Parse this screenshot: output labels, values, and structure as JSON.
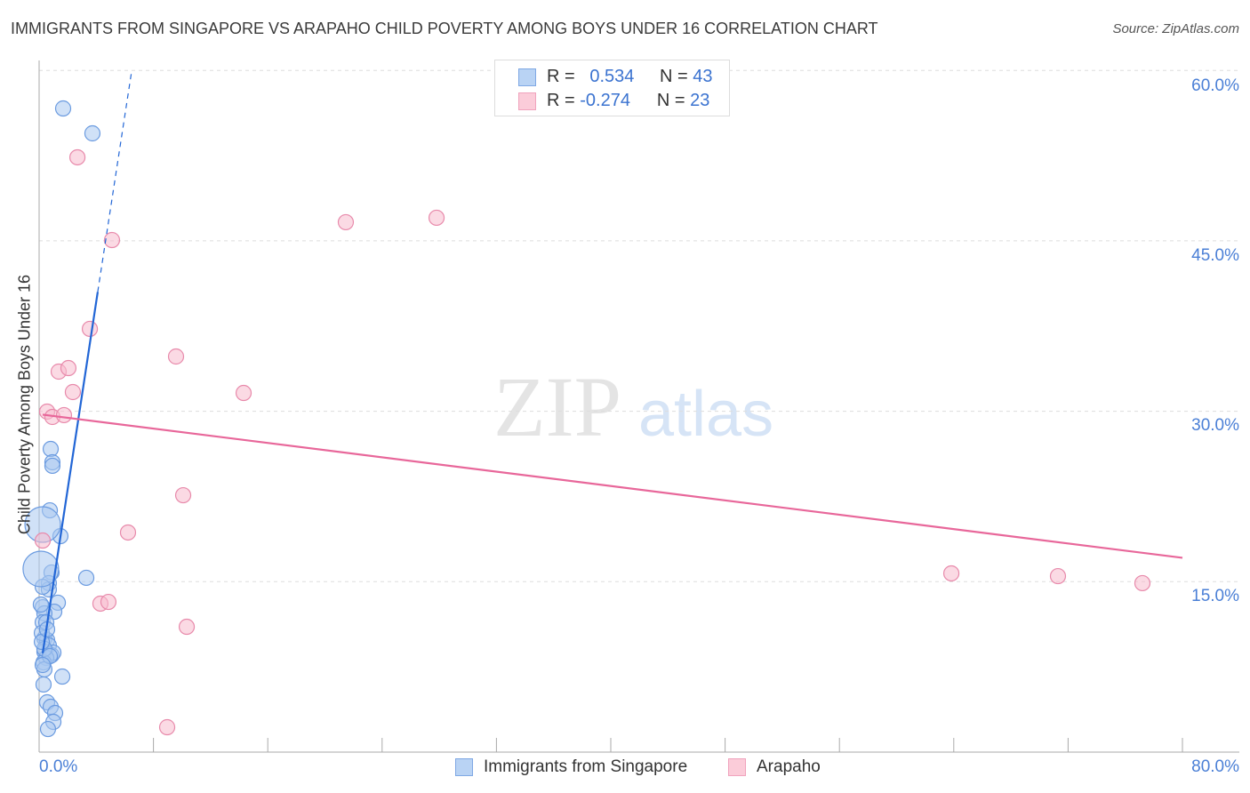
{
  "chart_data": {
    "type": "scatter",
    "title": "IMMIGRANTS FROM SINGAPORE VS ARAPAHO CHILD POVERTY AMONG BOYS UNDER 16 CORRELATION CHART",
    "source": "Source: ZipAtlas.com",
    "ylabel": "Child Poverty Among Boys Under 16",
    "xlim": [
      0,
      80
    ],
    "ylim": [
      0,
      62
    ],
    "x_tick_labels": [
      "0.0%",
      "80.0%"
    ],
    "y_ticks": [
      15,
      30,
      45,
      60
    ],
    "y_tick_labels": [
      "15.0%",
      "30.0%",
      "45.0%",
      "60.0%"
    ],
    "grid": true,
    "legend": [
      {
        "name": "Immigrants from Singapore",
        "r_label": "R =",
        "r": "0.534",
        "n_label": "N =",
        "n": "43",
        "color": "#a9c8f0",
        "stroke": "#6b9be0"
      },
      {
        "name": "Arapaho",
        "r_label": "R =",
        "r": "-0.274",
        "n_label": "N =",
        "n": "23",
        "color": "#f8bccd",
        "stroke": "#e88aab"
      }
    ],
    "series": [
      {
        "name": "Immigrants from Singapore",
        "trend": {
          "x0": 0.25,
          "y0": 8.7,
          "x1": 4.1,
          "y1": 40.5,
          "dash_to_x": 6.47,
          "dash_to_y": 59.9,
          "color": "#2266d6"
        },
        "points": [
          [
            1.68,
            56.65
          ],
          [
            3.73,
            54.46
          ],
          [
            0.81,
            26.68
          ],
          [
            0.93,
            25.51
          ],
          [
            0.93,
            25.2
          ],
          [
            0.75,
            21.28
          ],
          [
            1.49,
            19.01
          ],
          [
            0.25,
            20.03,
            "big"
          ],
          [
            0.87,
            15.81
          ],
          [
            3.3,
            15.34
          ],
          [
            0.68,
            14.87
          ],
          [
            0.68,
            14.32
          ],
          [
            1.31,
            13.15
          ],
          [
            0.25,
            12.75
          ],
          [
            1.06,
            12.36
          ],
          [
            0.37,
            12.21
          ],
          [
            0.25,
            11.42
          ],
          [
            0.37,
            10.02
          ],
          [
            0.56,
            9.86
          ],
          [
            0.19,
            10.49
          ],
          [
            0.68,
            9.39
          ],
          [
            0.37,
            8.84
          ],
          [
            0.87,
            8.53
          ],
          [
            1.0,
            8.76
          ],
          [
            0.5,
            8.29
          ],
          [
            0.31,
            7.9
          ],
          [
            1.62,
            6.65
          ],
          [
            0.37,
            7.28
          ],
          [
            0.31,
            5.95
          ],
          [
            0.56,
            4.38
          ],
          [
            0.81,
            3.99
          ],
          [
            1.12,
            3.44
          ],
          [
            1.0,
            2.66
          ],
          [
            0.62,
            2.03
          ],
          [
            0.25,
            14.55
          ],
          [
            0.12,
            16.12,
            "big"
          ],
          [
            0.37,
            9.08
          ],
          [
            0.75,
            8.45
          ],
          [
            0.5,
            11.42
          ],
          [
            0.12,
            12.99
          ],
          [
            0.19,
            9.7
          ],
          [
            0.56,
            10.8
          ],
          [
            0.25,
            7.67
          ]
        ]
      },
      {
        "name": "Arapaho",
        "trend": {
          "x0": 0.25,
          "y0": 29.7,
          "x1": 80,
          "y1": 17.1,
          "color": "#e8679a"
        },
        "points": [
          [
            2.68,
            52.35
          ],
          [
            5.1,
            45.07
          ],
          [
            21.46,
            46.64
          ],
          [
            27.81,
            47.03
          ],
          [
            3.55,
            37.25
          ],
          [
            9.58,
            34.82
          ],
          [
            1.37,
            33.49
          ],
          [
            2.05,
            33.8
          ],
          [
            2.36,
            31.69
          ],
          [
            14.31,
            31.61
          ],
          [
            0.56,
            29.97
          ],
          [
            0.93,
            29.5
          ],
          [
            1.74,
            29.66
          ],
          [
            10.08,
            22.61
          ],
          [
            6.22,
            19.33
          ],
          [
            0.25,
            18.62
          ],
          [
            4.29,
            13.07
          ],
          [
            4.85,
            13.22
          ],
          [
            10.33,
            11.03
          ],
          [
            8.96,
            2.19
          ],
          [
            63.83,
            15.73
          ],
          [
            71.29,
            15.49
          ],
          [
            77.2,
            14.87
          ]
        ]
      }
    ],
    "watermark": "ZIPatlas"
  }
}
